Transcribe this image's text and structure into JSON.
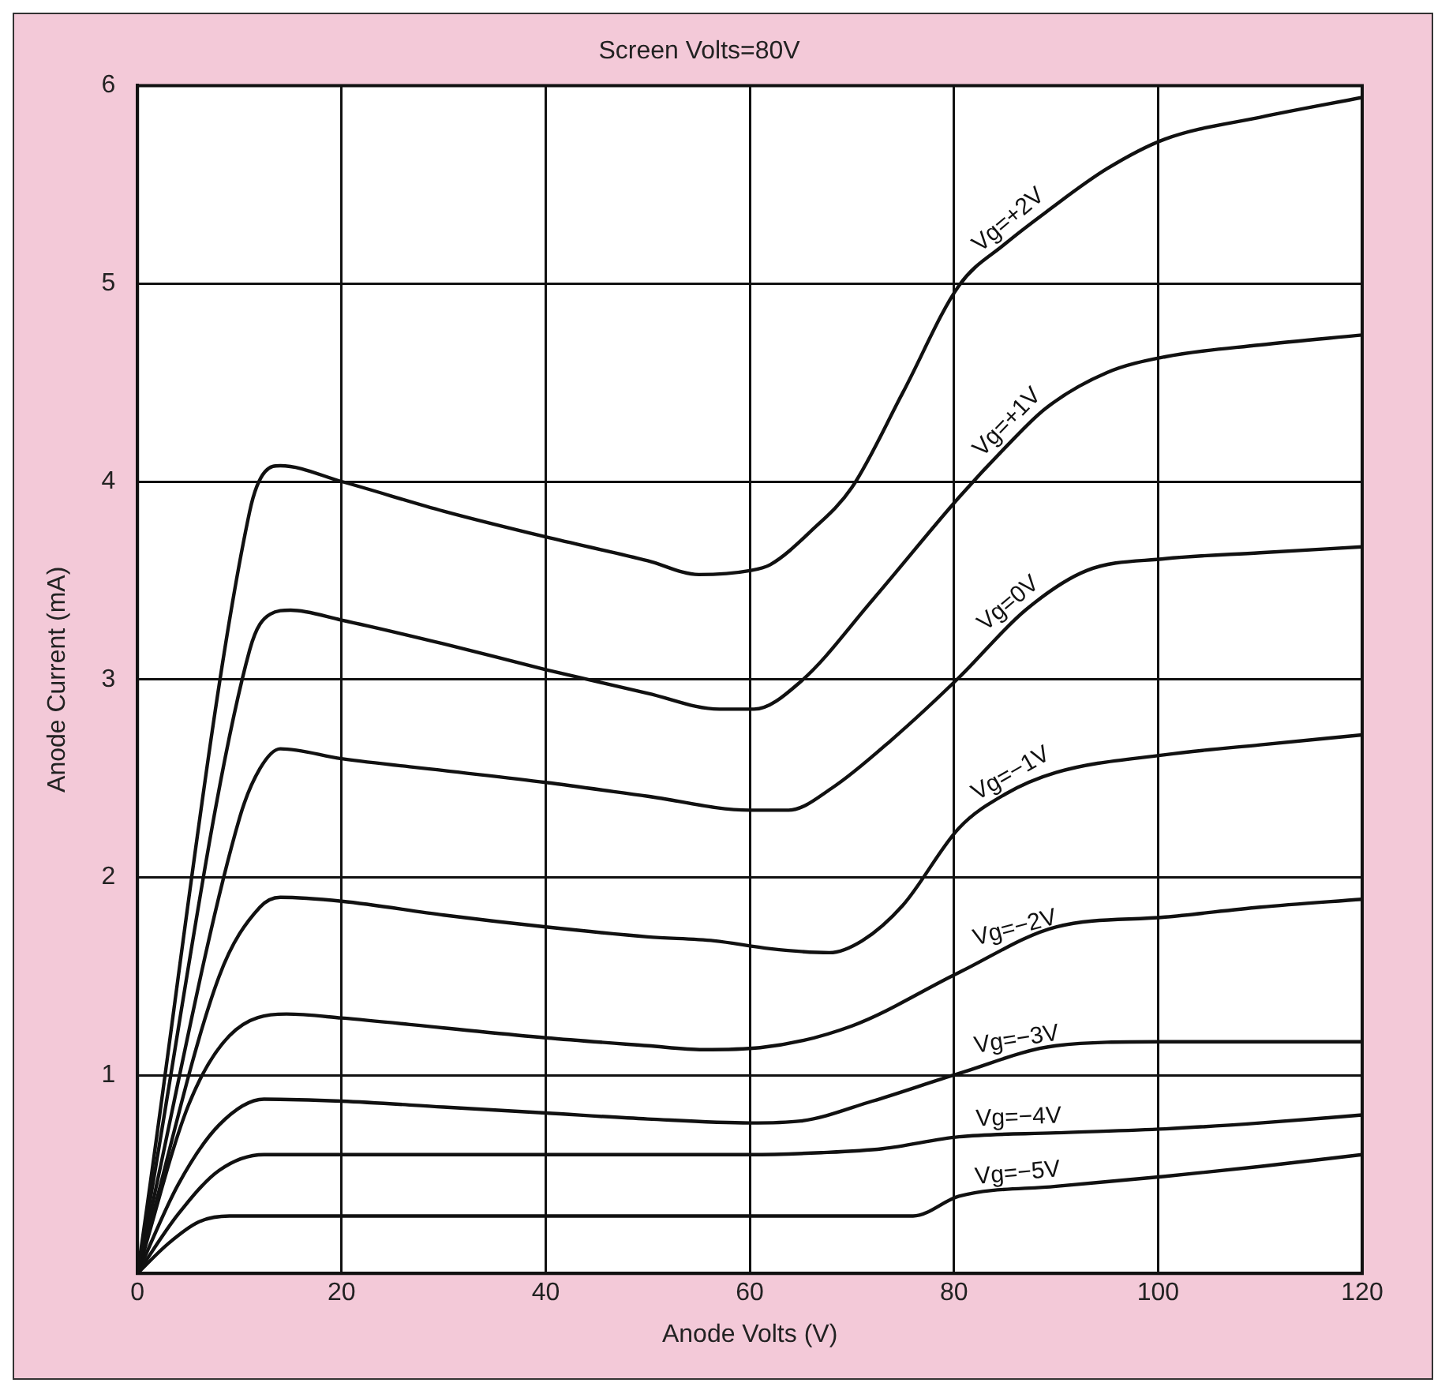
{
  "chart_data": {
    "type": "line",
    "title": "Screen Volts=80V",
    "xlabel": "Anode Volts (V)",
    "ylabel": "Anode Current (mA)",
    "xlim": [
      0,
      120
    ],
    "xticks": [
      0,
      20,
      40,
      60,
      80,
      100,
      120
    ],
    "ylim": [
      0,
      6
    ],
    "yticks": [
      {
        "value": 0,
        "label": null
      },
      1,
      2,
      3,
      4,
      5,
      6
    ],
    "grid": true,
    "legend": false,
    "marker": "none",
    "line_style": "solid",
    "series": [
      {
        "name": "Vg=+2V",
        "color": "#111111",
        "x": [
          0,
          11,
          12.5,
          14,
          20,
          30,
          40,
          50,
          55,
          60,
          62,
          66,
          70,
          75,
          80.5,
          85,
          89,
          95,
          100.7,
          110,
          120
        ],
        "values": [
          0,
          3.85,
          4.05,
          4.08,
          4.0,
          3.85,
          3.72,
          3.6,
          3.53,
          3.55,
          3.58,
          3.75,
          3.97,
          4.45,
          4.99,
          5.2,
          5.36,
          5.58,
          5.73,
          5.84,
          5.94
        ]
      },
      {
        "name": "Vg=+1V",
        "color": "#111111",
        "x": [
          0,
          11,
          13,
          15,
          20,
          30,
          40,
          50,
          57,
          60.4,
          65,
          72,
          80.5,
          85,
          89,
          95,
          100.7,
          110,
          120
        ],
        "values": [
          0,
          3.15,
          3.33,
          3.35,
          3.3,
          3.18,
          3.05,
          2.93,
          2.85,
          2.85,
          2.99,
          3.4,
          3.92,
          4.17,
          4.37,
          4.55,
          4.63,
          4.69,
          4.74
        ]
      },
      {
        "name": "Vg=0V",
        "color": "#111111",
        "x": [
          0,
          10,
          12,
          14,
          20,
          30,
          40,
          50,
          60,
          63.8,
          68,
          74,
          80.5,
          87,
          93,
          100.7,
          110,
          120
        ],
        "values": [
          0,
          2.3,
          2.55,
          2.65,
          2.6,
          2.54,
          2.48,
          2.41,
          2.34,
          2.34,
          2.45,
          2.7,
          3.01,
          3.35,
          3.55,
          3.61,
          3.64,
          3.67
        ]
      },
      {
        "name": "Vg=−1V",
        "color": "#111111",
        "x": [
          0,
          8,
          12,
          14,
          20,
          30,
          40,
          50,
          56.5,
          62,
          67.8,
          71,
          75,
          80.5,
          85,
          90,
          100.7,
          110,
          120
        ],
        "values": [
          0,
          1.5,
          1.85,
          1.9,
          1.88,
          1.81,
          1.75,
          1.7,
          1.68,
          1.64,
          1.62,
          1.68,
          1.86,
          2.25,
          2.42,
          2.53,
          2.62,
          2.67,
          2.72
        ]
      },
      {
        "name": "Vg=−2V",
        "color": "#111111",
        "x": [
          0,
          5,
          9,
          14.6,
          20,
          30,
          40,
          50,
          55.4,
          61,
          70,
          80.5,
          90,
          100.7,
          110,
          120
        ],
        "values": [
          0,
          0.85,
          1.2,
          1.31,
          1.29,
          1.24,
          1.19,
          1.15,
          1.13,
          1.14,
          1.25,
          1.52,
          1.75,
          1.8,
          1.85,
          1.89
        ]
      },
      {
        "name": "Vg=−3V",
        "color": "#111111",
        "x": [
          0,
          4,
          8,
          12.4,
          20,
          30,
          40,
          50,
          60,
          65,
          72,
          80.5,
          90,
          100,
          120
        ],
        "values": [
          0,
          0.45,
          0.75,
          0.88,
          0.87,
          0.84,
          0.81,
          0.78,
          0.76,
          0.77,
          0.87,
          1.01,
          1.15,
          1.17,
          1.17
        ]
      },
      {
        "name": "Vg=−4V",
        "color": "#111111",
        "x": [
          0,
          4,
          8,
          12.4,
          20,
          40,
          60,
          67,
          73,
          80.5,
          90,
          100.7,
          110,
          120
        ],
        "values": [
          0,
          0.3,
          0.52,
          0.6,
          0.6,
          0.6,
          0.6,
          0.61,
          0.63,
          0.69,
          0.71,
          0.73,
          0.76,
          0.8
        ]
      },
      {
        "name": "Vg=−5V",
        "color": "#111111",
        "x": [
          0,
          3,
          6,
          9,
          20,
          40,
          60,
          76,
          80.5,
          90,
          100.7,
          110,
          120
        ],
        "values": [
          0,
          0.15,
          0.26,
          0.29,
          0.29,
          0.29,
          0.29,
          0.29,
          0.39,
          0.44,
          0.49,
          0.54,
          0.6
        ]
      }
    ]
  }
}
